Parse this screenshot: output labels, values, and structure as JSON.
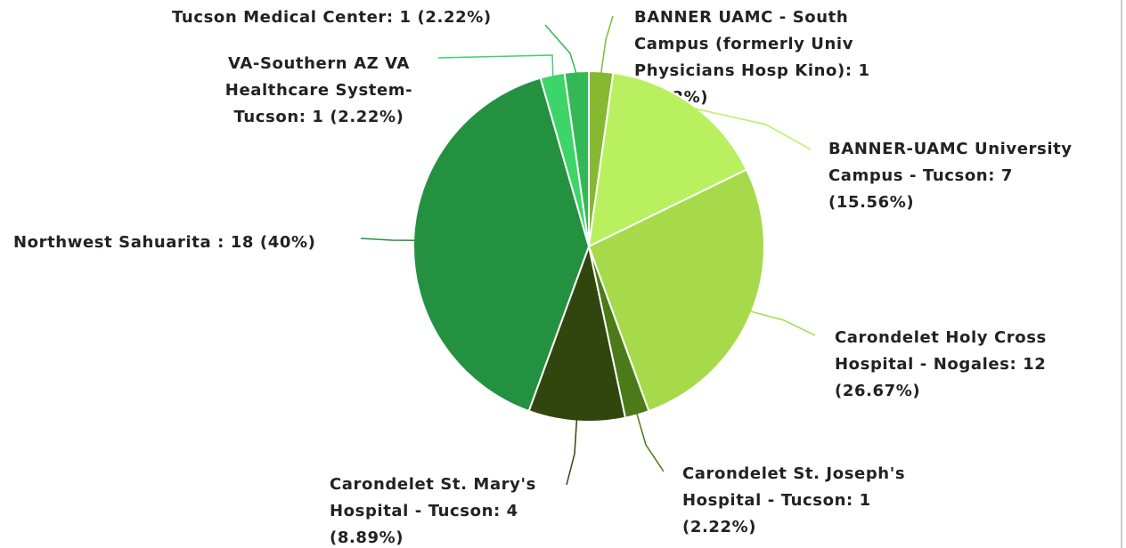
{
  "chart_data": {
    "type": "pie",
    "categories": [
      "BANNER UAMC - South Campus (formerly Univ Physicians Hosp Kino)",
      "BANNER-UAMC University Campus - Tucson",
      "Carondelet Holy Cross Hospital - Nogales",
      "Carondelet St. Joseph's Hospital - Tucson",
      "Carondelet St. Mary's Hospital - Tucson",
      "Northwest Sahuarita ",
      "VA-Southern AZ VA Healthcare System-Tucson",
      "Tucson Medical Center"
    ],
    "values": [
      1,
      7,
      12,
      1,
      4,
      18,
      1,
      1
    ],
    "value_labels": [
      [
        "BANNER UAMC - South",
        "Campus (formerly Univ",
        "Physicians Hosp Kino): 1",
        "(2.22%)"
      ],
      [
        "BANNER-UAMC University",
        "Campus - Tucson: 7",
        "(15.56%)"
      ],
      [
        "Carondelet Holy Cross",
        "Hospital - Nogales: 12",
        "(26.67%)"
      ],
      [
        "Carondelet St. Joseph's",
        "Hospital - Tucson: 1",
        "(2.22%)"
      ],
      [
        "Carondelet St. Mary's",
        "Hospital - Tucson: 4",
        "(8.89%)"
      ],
      [
        "Northwest Sahuarita : 18 (40%)"
      ],
      [
        "VA-Southern AZ VA",
        "Healthcare System-",
        "Tucson: 1 (2.22%)"
      ],
      [
        "Tucson Medical Center: 1 (2.22%)"
      ]
    ],
    "colors": [
      "#86b832",
      "#b8f060",
      "#a6da4a",
      "#4c7a18",
      "#30460e",
      "#239140",
      "#3dd46a",
      "#33b855"
    ]
  }
}
